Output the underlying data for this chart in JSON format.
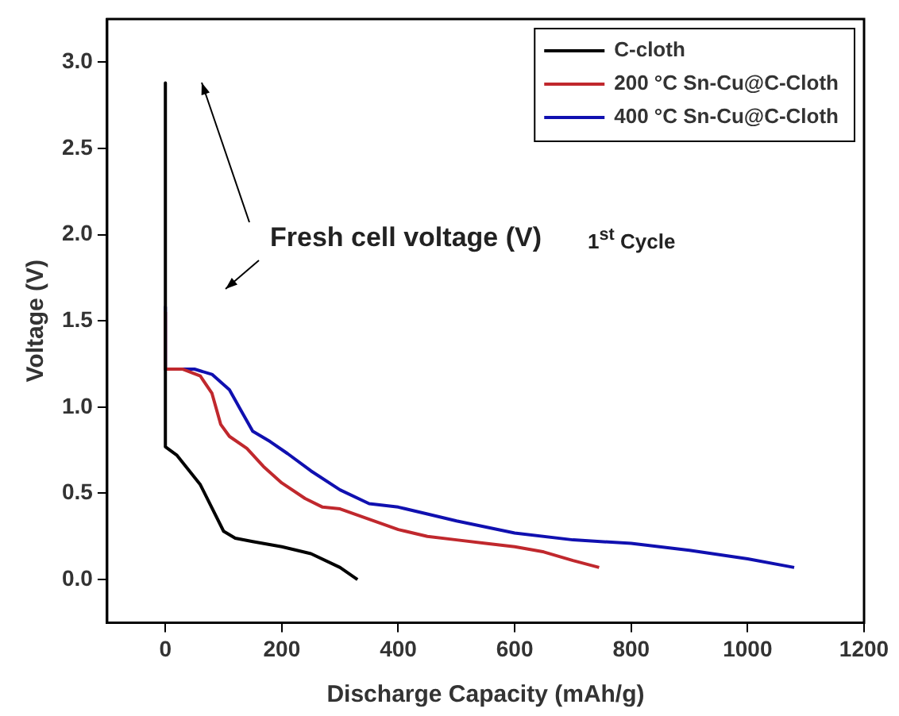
{
  "chart_data": {
    "type": "line",
    "xlabel": "Discharge Capacity (mAh/g)",
    "ylabel": "Voltage (V)",
    "xlim": [
      -100,
      1200
    ],
    "xticks": [
      0,
      200,
      400,
      600,
      800,
      1000,
      1200
    ],
    "ylim": [
      -0.25,
      3.25
    ],
    "yticks": [
      {
        "value": 0,
        "label": "0.0"
      },
      0.5,
      {
        "value": 1,
        "label": "1.0"
      },
      1.5,
      {
        "value": 2,
        "label": "2.0"
      },
      2.5,
      {
        "value": 3,
        "label": "3.0"
      }
    ],
    "grid": false,
    "legend": "top right",
    "marker": "none",
    "line_style": "solid",
    "annotations": [
      "Fresh cell voltage (V)",
      "1$^{st}$ Cycle"
    ],
    "series": [
      {
        "name": "C-cloth",
        "color": "#000000",
        "x": [
          0,
          0,
          20,
          60,
          100,
          120,
          150,
          200,
          250,
          300,
          330
        ],
        "values": [
          2.88,
          0.77,
          0.72,
          0.55,
          0.28,
          0.24,
          0.22,
          0.19,
          0.15,
          0.07,
          0.0
        ]
      },
      {
        "name": "200 °C Sn-Cu@C-Cloth",
        "color": "#c0282d",
        "x": [
          0,
          0,
          30,
          60,
          80,
          95,
          110,
          140,
          170,
          200,
          240,
          270,
          300,
          350,
          400,
          450,
          500,
          550,
          600,
          650,
          700,
          745
        ],
        "values": [
          1.55,
          1.22,
          1.22,
          1.18,
          1.08,
          0.9,
          0.83,
          0.76,
          0.65,
          0.56,
          0.47,
          0.42,
          0.41,
          0.35,
          0.29,
          0.25,
          0.23,
          0.21,
          0.19,
          0.16,
          0.11,
          0.07
        ]
      },
      {
        "name": "400 °C Sn-Cu@C-Cloth",
        "color": "#1010b0",
        "x": [
          0,
          0,
          50,
          80,
          110,
          130,
          150,
          180,
          210,
          250,
          300,
          350,
          400,
          450,
          500,
          600,
          700,
          800,
          900,
          1000,
          1080
        ],
        "values": [
          1.58,
          1.22,
          1.22,
          1.19,
          1.1,
          0.98,
          0.86,
          0.8,
          0.73,
          0.63,
          0.52,
          0.44,
          0.42,
          0.38,
          0.34,
          0.27,
          0.23,
          0.21,
          0.17,
          0.12,
          0.07
        ]
      }
    ]
  }
}
